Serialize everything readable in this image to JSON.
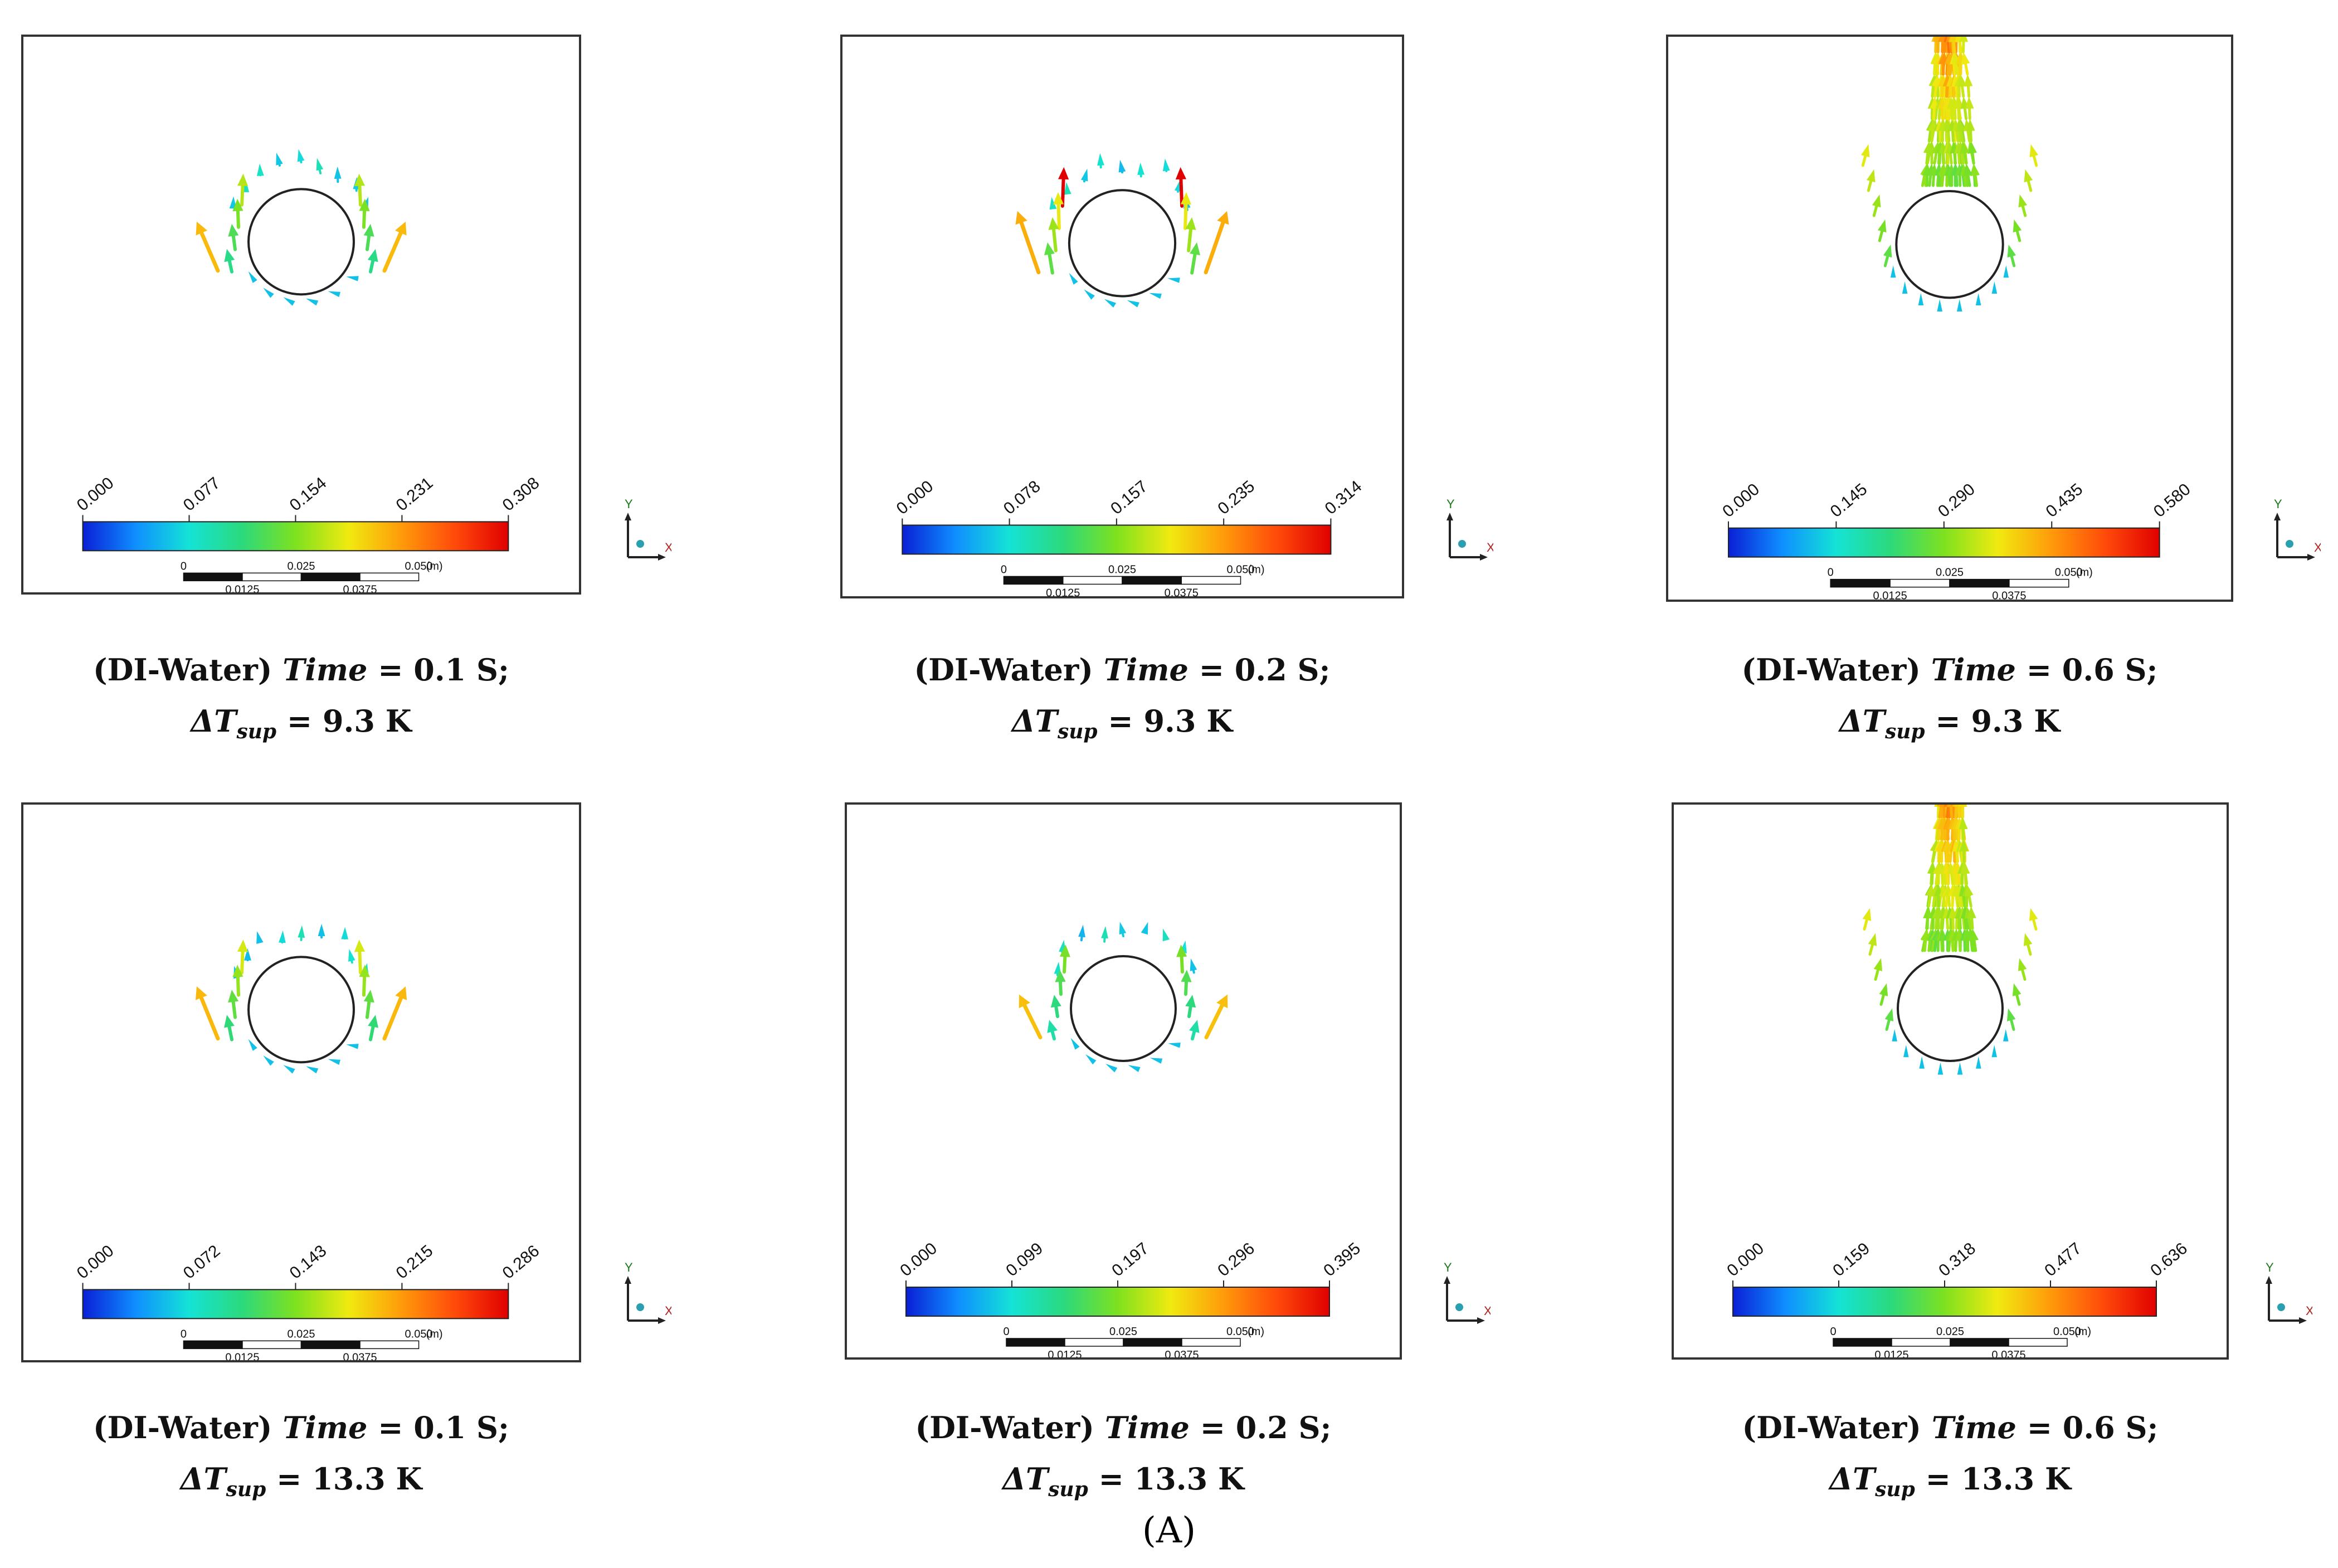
{
  "figure_label": "(A)",
  "panels": [
    {
      "fluid": "(DI-Water)",
      "time_word": "Time",
      "time_eq": "=",
      "time_value": "0.1 S;",
      "delta": "ΔT",
      "sub": "sup",
      "temp_eq": "=",
      "temp_value": "9.3 K",
      "ticks": [
        "0.000",
        "0.077",
        "0.154",
        "0.231",
        "0.308"
      ],
      "flow": "near",
      "strength": 0.8
    },
    {
      "fluid": "(DI-Water)",
      "time_word": "Time",
      "time_eq": "=",
      "time_value": "0.2 S;",
      "delta": "ΔT",
      "sub": "sup",
      "temp_eq": "=",
      "temp_value": "9.3 K",
      "ticks": [
        "0.000",
        "0.078",
        "0.157",
        "0.235",
        "0.314"
      ],
      "flow": "near",
      "strength": 1.0
    },
    {
      "fluid": "(DI-Water)",
      "time_word": "Time",
      "time_eq": "=",
      "time_value": "0.6 S;",
      "delta": "ΔT",
      "sub": "sup",
      "temp_eq": "=",
      "temp_value": "9.3 K",
      "ticks": [
        "0.000",
        "0.145",
        "0.290",
        "0.435",
        "0.580"
      ],
      "flow": "plume",
      "strength": 1.0
    },
    {
      "fluid": "(DI-Water)",
      "time_word": "Time",
      "time_eq": "=",
      "time_value": "0.1 S;",
      "delta": "ΔT",
      "sub": "sup",
      "temp_eq": "=",
      "temp_value": "13.3 K",
      "ticks": [
        "0.000",
        "0.072",
        "0.143",
        "0.215",
        "0.286"
      ],
      "flow": "near",
      "strength": 0.85
    },
    {
      "fluid": "(DI-Water)",
      "time_word": "Time",
      "time_eq": "=",
      "time_value": "0.2 S;",
      "delta": "ΔT",
      "sub": "sup",
      "temp_eq": "=",
      "temp_value": "13.3 K",
      "ticks": [
        "0.000",
        "0.099",
        "0.197",
        "0.296",
        "0.395"
      ],
      "flow": "near",
      "strength": 0.7
    },
    {
      "fluid": "(DI-Water)",
      "time_word": "Time",
      "time_eq": "=",
      "time_value": "0.6 S;",
      "delta": "ΔT",
      "sub": "sup",
      "temp_eq": "=",
      "temp_value": "13.3 K",
      "ticks": [
        "0.000",
        "0.159",
        "0.318",
        "0.477",
        "0.636"
      ],
      "flow": "plume",
      "strength": 1.0
    }
  ],
  "scale_bar": {
    "top": [
      "0",
      "0.025",
      "0.050",
      "(m)"
    ],
    "bottom": [
      "0.0125",
      "0.0375"
    ]
  },
  "axis": {
    "y": "Y",
    "x": "X"
  },
  "colormap": [
    "#0a1fd6",
    "#0f8fff",
    "#14e3d6",
    "#2cd97c",
    "#7ee11f",
    "#f0ea10",
    "#ff9a0a",
    "#ff4a0a",
    "#e00000"
  ]
}
